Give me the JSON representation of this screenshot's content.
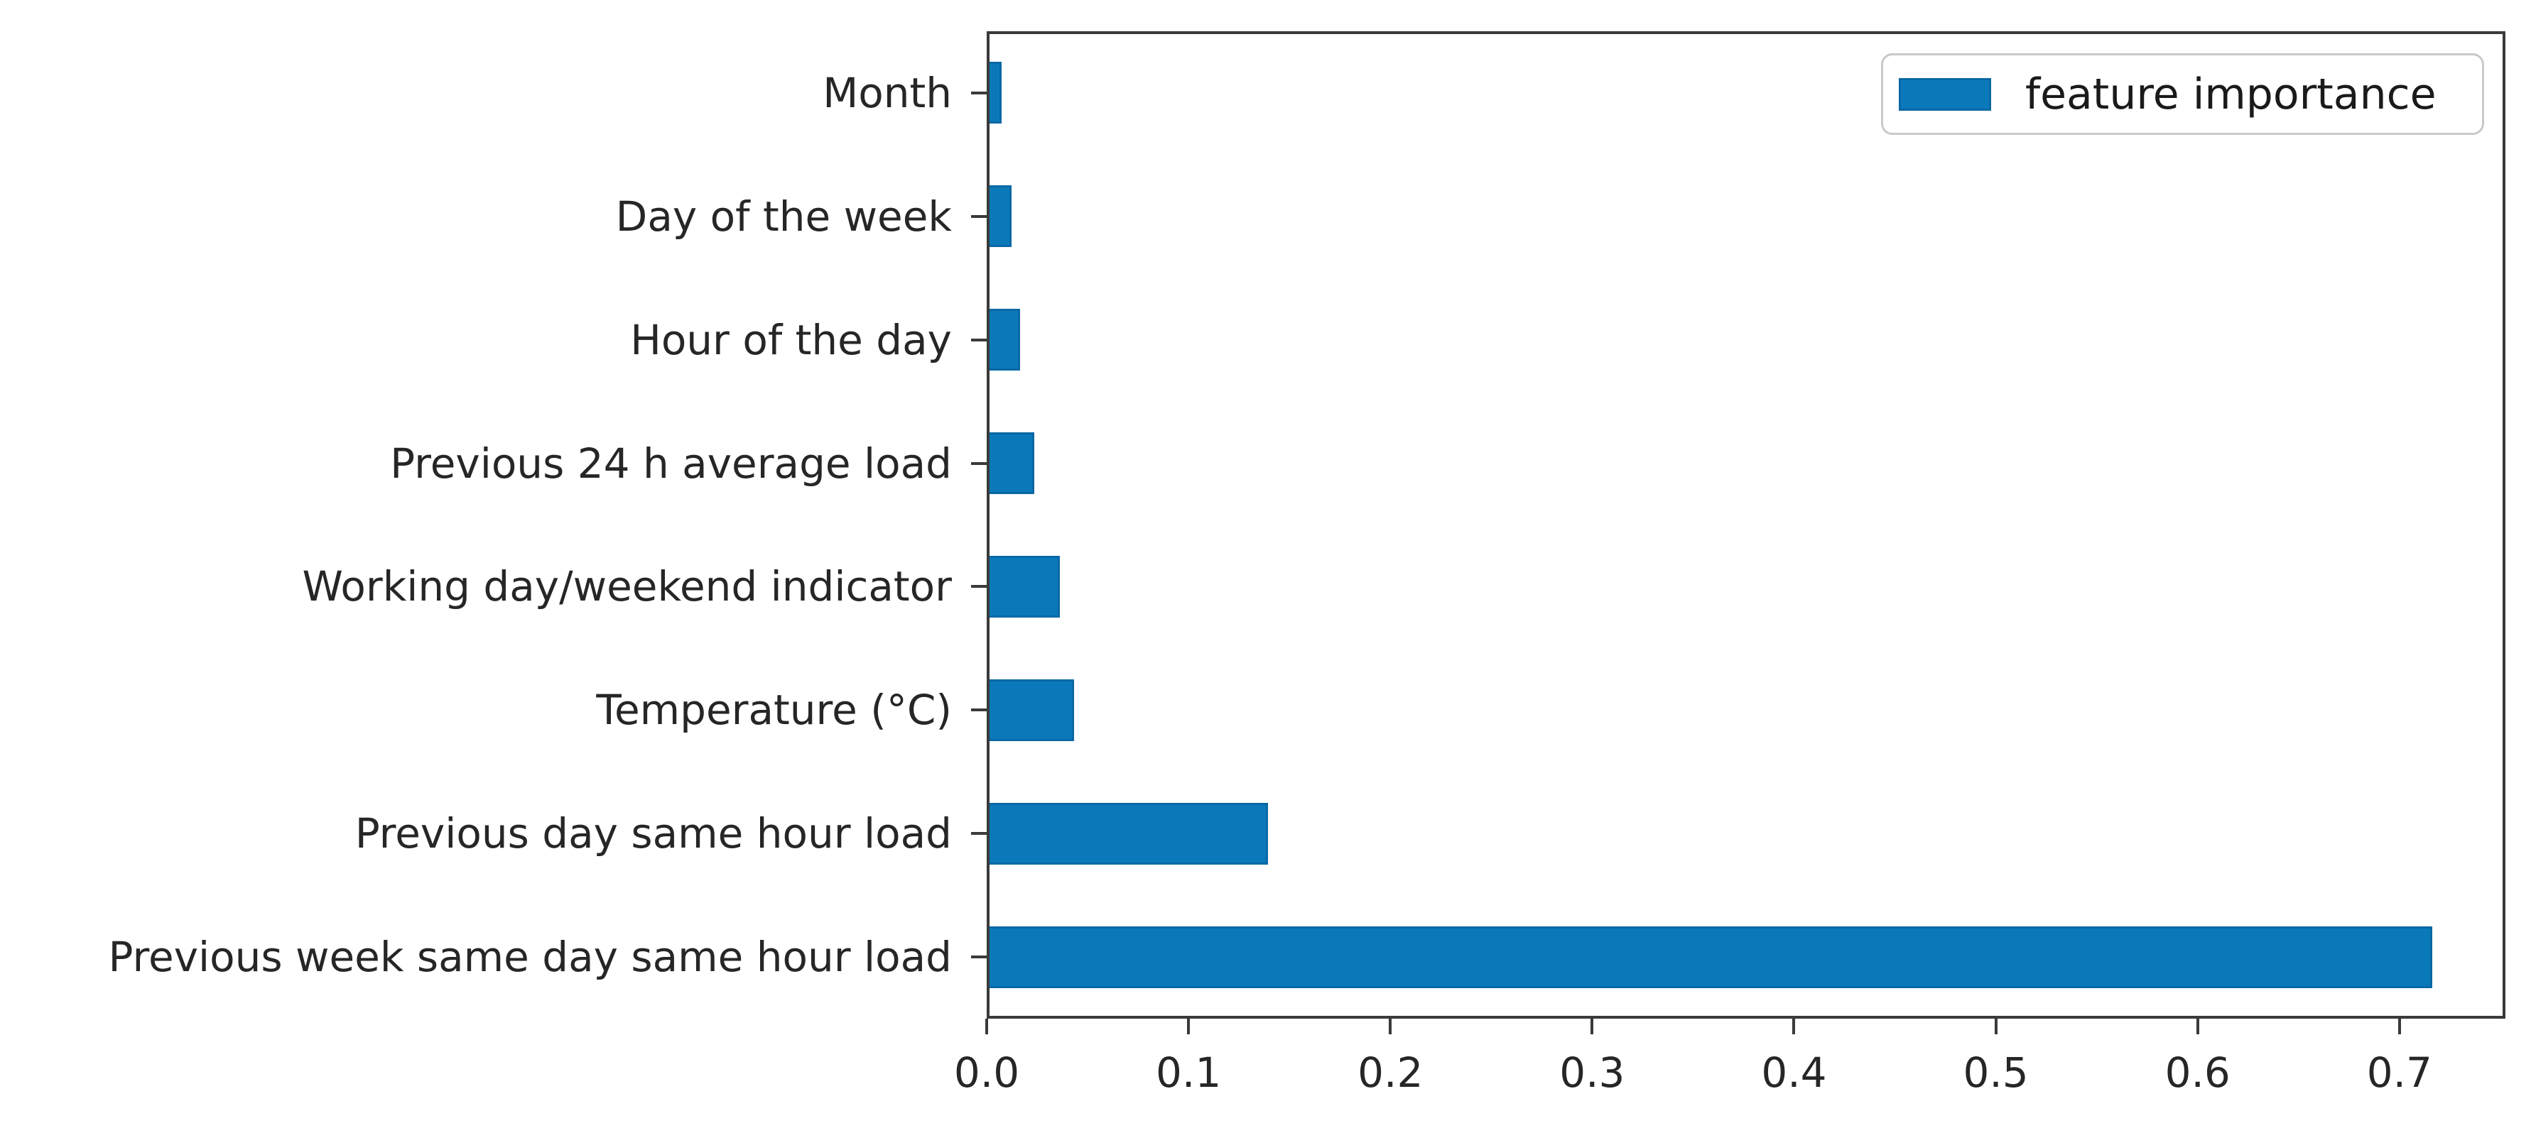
{
  "chart_data": {
    "type": "bar",
    "orientation": "horizontal",
    "title": "",
    "xlabel": "",
    "ylabel": "",
    "categories": [
      "Month",
      "Day of the week",
      "Hour of the day",
      "Previous 24 h average load",
      "Working day/weekend indicator",
      "Temperature (°C)",
      "Previous day same hour load",
      "Previous week same day same hour load"
    ],
    "series": [
      {
        "name": "feature importance",
        "values": [
          0.006,
          0.011,
          0.015,
          0.022,
          0.035,
          0.042,
          0.138,
          0.715
        ]
      }
    ],
    "xlim": [
      0,
      0.7525
    ],
    "xticks": [
      0.0,
      0.1,
      0.2,
      0.3,
      0.4,
      0.5,
      0.6,
      0.7
    ],
    "xtick_labels": [
      "0.0",
      "0.1",
      "0.2",
      "0.3",
      "0.4",
      "0.5",
      "0.6",
      "0.7"
    ],
    "grid": false,
    "legend_position": "upper right",
    "colors": {
      "bar_fill": "#0a79ba",
      "bar_edge": "#0968a5",
      "axis": "#3a3a3a",
      "text": "#262626",
      "legend_border": "#c9c9c9"
    }
  },
  "legend": {
    "label": "feature importance"
  }
}
